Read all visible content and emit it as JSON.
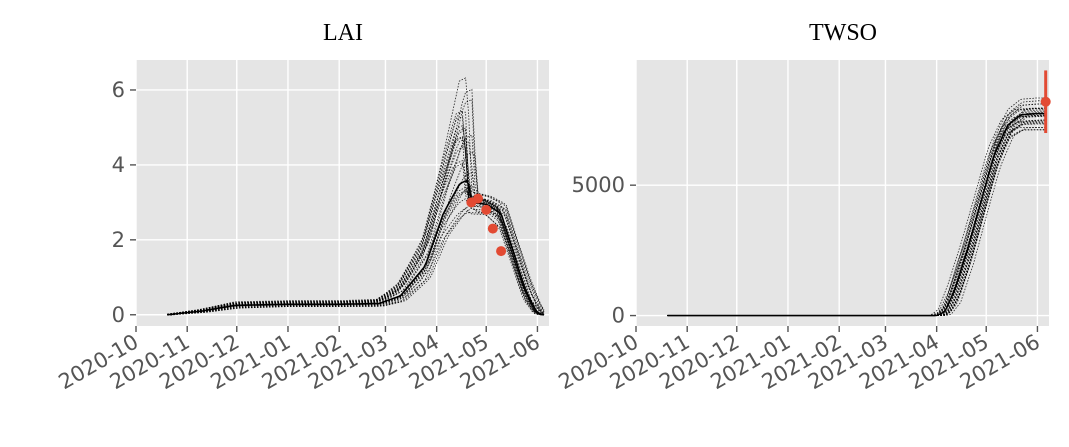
{
  "chart_data": [
    {
      "type": "line",
      "title": "LAI",
      "xlabel": "",
      "ylabel": "",
      "x_range": [
        "2020-10-01",
        "2021-06-08"
      ],
      "ylim": [
        -0.3,
        6.8
      ],
      "x_tick_labels": [
        "2020-10",
        "2020-11",
        "2020-12",
        "2021-01",
        "2021-02",
        "2021-03",
        "2021-04",
        "2021-05",
        "2021-06"
      ],
      "x_tick_dates": [
        "2020-10-01",
        "2020-11-01",
        "2020-12-01",
        "2021-01-01",
        "2021-02-01",
        "2021-03-01",
        "2021-04-01",
        "2021-05-01",
        "2021-06-01"
      ],
      "y_ticks": [
        0,
        2,
        4,
        6
      ],
      "y_tick_labels": [
        "0",
        "2",
        "4",
        "6"
      ],
      "ensemble_color": "#000000",
      "observation_color": "#e24a33",
      "grid": true,
      "background": "#e5e5e5",
      "observations": [
        {
          "x": "2021-04-22",
          "y": 3.0
        },
        {
          "x": "2021-04-26",
          "y": 3.1
        },
        {
          "x": "2021-05-01",
          "y": 2.8
        },
        {
          "x": "2021-05-05",
          "y": 2.3
        },
        {
          "x": "2021-05-10",
          "y": 1.7
        }
      ],
      "ensemble_envelope": {
        "x": [
          "2020-10-20",
          "2020-11-10",
          "2020-11-30",
          "2021-01-01",
          "2021-02-01",
          "2021-02-25",
          "2021-03-10",
          "2021-03-25",
          "2021-04-05",
          "2021-04-15",
          "2021-04-20",
          "2021-04-22",
          "2021-05-01",
          "2021-05-10",
          "2021-05-18",
          "2021-05-25",
          "2021-06-01",
          "2021-06-05"
        ],
        "low": [
          0.0,
          0.05,
          0.15,
          0.2,
          0.2,
          0.2,
          0.3,
          0.8,
          1.8,
          2.3,
          2.5,
          2.6,
          2.6,
          2.2,
          1.2,
          0.3,
          0.0,
          0.0
        ],
        "mid": [
          0.0,
          0.1,
          0.25,
          0.28,
          0.28,
          0.3,
          0.5,
          1.3,
          2.7,
          3.5,
          3.6,
          3.0,
          2.95,
          2.7,
          1.6,
          0.6,
          0.05,
          0.0
        ],
        "high": [
          0.0,
          0.15,
          0.35,
          0.38,
          0.38,
          0.42,
          0.9,
          2.2,
          4.3,
          6.4,
          6.5,
          3.3,
          3.2,
          3.0,
          1.9,
          1.0,
          0.2,
          0.0
        ]
      }
    },
    {
      "type": "line",
      "title": "TWSO",
      "xlabel": "",
      "ylabel": "",
      "x_range": [
        "2020-10-01",
        "2021-06-08"
      ],
      "ylim": [
        -400,
        9800
      ],
      "x_tick_labels": [
        "2020-10",
        "2020-11",
        "2020-12",
        "2021-01",
        "2021-02",
        "2021-03",
        "2021-04",
        "2021-05",
        "2021-06"
      ],
      "x_tick_dates": [
        "2020-10-01",
        "2020-11-01",
        "2020-12-01",
        "2021-01-01",
        "2021-02-01",
        "2021-03-01",
        "2021-04-01",
        "2021-05-01",
        "2021-06-01"
      ],
      "y_ticks": [
        0,
        5000
      ],
      "y_tick_labels": [
        "0",
        "5000"
      ],
      "ensemble_color": "#000000",
      "observation_color": "#e24a33",
      "grid": true,
      "background": "#e5e5e5",
      "observations": [
        {
          "x": "2021-06-06",
          "y": 8200,
          "err_low": 7000,
          "err_high": 9400
        }
      ],
      "ensemble_envelope": {
        "x": [
          "2020-10-20",
          "2021-04-01",
          "2021-04-06",
          "2021-04-12",
          "2021-04-20",
          "2021-04-28",
          "2021-05-06",
          "2021-05-14",
          "2021-05-22",
          "2021-06-01",
          "2021-06-06"
        ],
        "low": [
          0,
          0,
          0,
          400,
          1900,
          3800,
          5600,
          6800,
          7100,
          7100,
          7100
        ],
        "mid": [
          0,
          0,
          150,
          1000,
          2600,
          4400,
          6200,
          7300,
          7700,
          7750,
          7750
        ],
        "high": [
          0,
          0,
          400,
          1700,
          3300,
          5000,
          6800,
          7900,
          8300,
          8350,
          8350
        ]
      }
    }
  ]
}
